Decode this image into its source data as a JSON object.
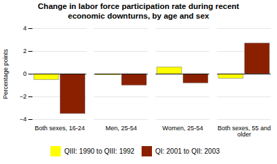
{
  "chart_data": {
    "type": "bar",
    "title": "Change in labor force participation rate during recent\neconomic downturns, by age and sex",
    "categories": [
      "Both sexes, 16-24",
      "Men, 25-54",
      "Women, 25-54",
      "Both sexes, 55 and\nolder"
    ],
    "series": [
      {
        "name": "QIII: 1990 to QIII: 1992",
        "color": "#ffff00",
        "values": [
          -0.5,
          -0.1,
          0.6,
          -0.4
        ]
      },
      {
        "name": "QI: 2001 to QII: 2003",
        "color": "#8b2000",
        "values": [
          -3.5,
          -1.0,
          -0.8,
          2.7
        ]
      }
    ],
    "ylabel": "Percentage points",
    "ylim": [
      -4,
      4
    ],
    "yticks": [
      -4,
      -2,
      0,
      2,
      4
    ],
    "grid": true,
    "legend": "bottom"
  }
}
